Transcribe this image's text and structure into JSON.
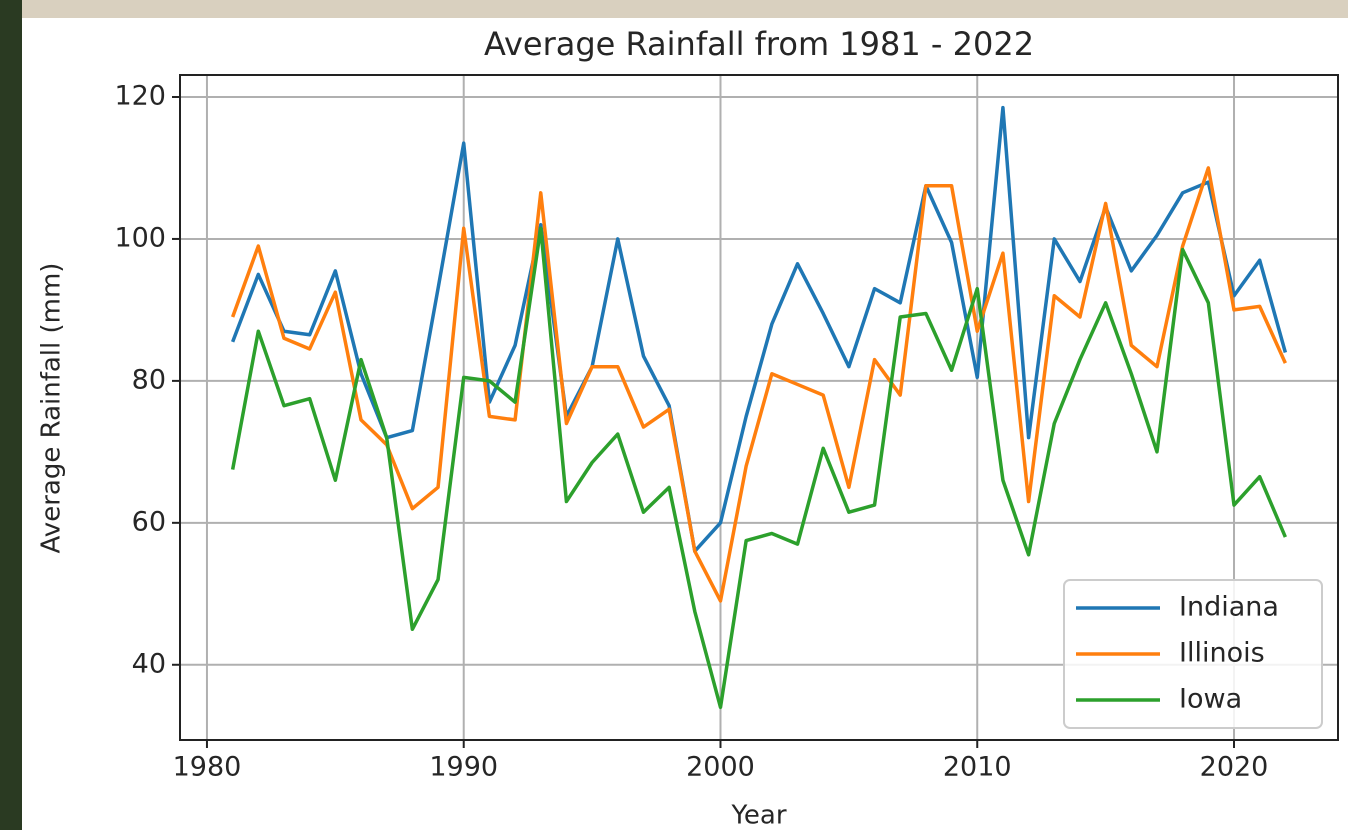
{
  "chart_data": {
    "type": "line",
    "title": "Average Rainfall from 1981 - 2022",
    "xlabel": "Year",
    "ylabel": "Average Rainfall (mm)",
    "x": [
      1981,
      1982,
      1983,
      1984,
      1985,
      1986,
      1987,
      1988,
      1989,
      1990,
      1991,
      1992,
      1993,
      1994,
      1995,
      1996,
      1997,
      1998,
      1999,
      2000,
      2001,
      2002,
      2003,
      2004,
      2005,
      2006,
      2007,
      2008,
      2009,
      2010,
      2011,
      2012,
      2013,
      2014,
      2015,
      2016,
      2017,
      2018,
      2019,
      2020,
      2021,
      2022
    ],
    "series": [
      {
        "name": "Indiana",
        "color": "#1f77b4",
        "values": [
          85.5,
          95,
          87,
          86.5,
          95.5,
          81,
          72,
          73,
          93,
          113.5,
          77,
          85,
          102,
          75,
          82,
          100,
          83.5,
          76.5,
          56,
          60,
          75,
          88,
          96.5,
          89.5,
          82,
          93,
          91,
          107.5,
          99.5,
          80.5,
          118.5,
          72,
          100,
          94,
          104.5,
          95.5,
          100.5,
          106.5,
          108,
          92,
          97,
          84
        ]
      },
      {
        "name": "Illinois",
        "color": "#ff7f0e",
        "values": [
          89,
          99,
          86,
          84.5,
          92.5,
          74.5,
          71,
          62,
          65,
          101.5,
          75,
          74.5,
          106.5,
          74,
          82,
          82,
          73.5,
          76,
          56,
          49,
          68,
          81,
          79.5,
          78,
          65,
          83,
          78,
          107.5,
          107.5,
          87,
          98,
          63,
          92,
          89,
          105,
          85,
          82,
          99,
          110,
          90,
          90.5,
          82.5
        ]
      },
      {
        "name": "Iowa",
        "color": "#2ca02c",
        "values": [
          67.5,
          87,
          76.5,
          77.5,
          66,
          83,
          72,
          45,
          52,
          80.5,
          80,
          77,
          101.5,
          63,
          68.5,
          72.5,
          61.5,
          65,
          47.5,
          34,
          57.5,
          58.5,
          57,
          70.5,
          61.5,
          62.5,
          89,
          89.5,
          81.5,
          93,
          66,
          55.5,
          74,
          83,
          91,
          81,
          70,
          98.5,
          91,
          62.5,
          66.5,
          58
        ]
      }
    ],
    "xlim": [
      1978.95,
      2024.05
    ],
    "xticks": [
      1980,
      1990,
      2000,
      2010,
      2020
    ],
    "ylim": [
      29.4,
      123.1
    ],
    "yticks": [
      40,
      60,
      80,
      100,
      120
    ],
    "grid": true,
    "legend": "lower right"
  }
}
